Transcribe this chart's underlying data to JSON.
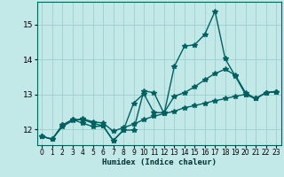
{
  "title": "",
  "xlabel": "Humidex (Indice chaleur)",
  "ylabel": "",
  "background_color": "#c2e8e8",
  "grid_color": "#9ecece",
  "line_color": "#006060",
  "xlim": [
    -0.5,
    23.5
  ],
  "ylim": [
    11.55,
    15.65
  ],
  "yticks": [
    12,
    13,
    14,
    15
  ],
  "xticks": [
    0,
    1,
    2,
    3,
    4,
    5,
    6,
    7,
    8,
    9,
    10,
    11,
    12,
    13,
    14,
    15,
    16,
    17,
    18,
    19,
    20,
    21,
    22,
    23
  ],
  "series1": [
    11.8,
    11.72,
    12.12,
    12.28,
    12.18,
    12.08,
    12.1,
    11.68,
    11.98,
    11.98,
    13.1,
    13.05,
    12.45,
    13.8,
    14.38,
    14.42,
    14.72,
    15.38,
    14.02,
    13.52,
    13.0,
    12.88,
    13.05,
    13.08
  ],
  "series2": [
    11.8,
    11.72,
    12.12,
    12.28,
    12.28,
    12.18,
    12.1,
    11.68,
    11.98,
    12.75,
    13.02,
    12.48,
    12.48,
    12.95,
    13.05,
    13.22,
    13.42,
    13.6,
    13.72,
    13.55,
    13.05,
    12.88,
    13.05,
    13.08
  ],
  "series3": [
    11.8,
    11.72,
    12.08,
    12.25,
    12.3,
    12.22,
    12.18,
    11.95,
    12.05,
    12.15,
    12.28,
    12.38,
    12.45,
    12.52,
    12.62,
    12.68,
    12.75,
    12.82,
    12.88,
    12.95,
    13.0,
    12.88,
    13.05,
    13.08
  ],
  "marker": "*",
  "markersize": 4,
  "linewidth": 1.0
}
